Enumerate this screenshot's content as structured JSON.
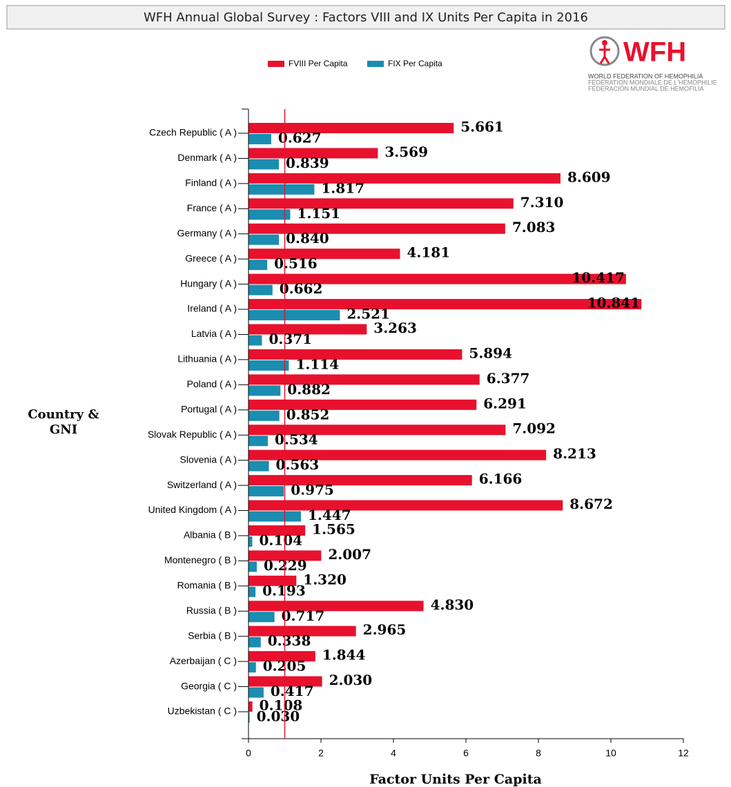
{
  "chart_data": {
    "type": "barh",
    "title": "WFH Annual Global Survey : Factors VIII and IX Units Per Capita in 2016",
    "logo": {
      "name": "WFH",
      "lines": [
        "WORLD FEDERATION OF HEMOPHILIA",
        "FÉDÉRATION MONDIALE DE L'HÉMOPHILIE",
        "FEDERACIÓN MUNDIAL DE HEMOFILIA"
      ]
    },
    "xlabel": "Factor Units Per Capita",
    "ylabel": [
      "Country &",
      "GNI"
    ],
    "categories": [
      "Czech Republic ( A )",
      "Denmark ( A )",
      "Finland ( A )",
      "France ( A )",
      "Germany ( A )",
      "Greece ( A )",
      "Hungary ( A )",
      "Ireland ( A )",
      "Latvia ( A )",
      "Lithuania ( A )",
      "Poland ( A )",
      "Portugal ( A )",
      "Slovak Republic ( A )",
      "Slovenia ( A )",
      "Switzerland ( A )",
      "United Kingdom ( A )",
      "Albania ( B )",
      "Montenegro ( B )",
      "Romania ( B )",
      "Russia ( B )",
      "Serbia ( B )",
      "Azerbaijan ( C )",
      "Georgia ( C )",
      "Uzbekistan ( C )"
    ],
    "series": [
      {
        "name": "FVIII Per Capita",
        "color": "#e8112d",
        "values": [
          5.661,
          3.569,
          8.609,
          7.31,
          7.083,
          4.181,
          10.417,
          10.841,
          3.263,
          5.894,
          6.377,
          6.291,
          7.092,
          8.213,
          6.166,
          8.672,
          1.565,
          2.007,
          1.32,
          4.83,
          2.965,
          1.844,
          2.03,
          0.108
        ],
        "value_labels": [
          "5.661",
          "3.569",
          "8.609",
          "7.310",
          "7.083",
          "4.181",
          "10.417",
          "10.841",
          "3.263",
          "5.894",
          "6.377",
          "6.291",
          "7.092",
          "8.213",
          "6.166",
          "8.672",
          "1.565",
          "2.007",
          "1.320",
          "4.830",
          "2.965",
          "1.844",
          "2.030",
          "0.108"
        ]
      },
      {
        "name": "FIX Per Capita",
        "color": "#1a8db0",
        "values": [
          0.627,
          0.839,
          1.817,
          1.151,
          0.84,
          0.516,
          0.662,
          2.521,
          0.371,
          1.114,
          0.882,
          0.852,
          0.534,
          0.563,
          0.975,
          1.447,
          0.104,
          0.229,
          0.193,
          0.717,
          0.338,
          0.205,
          0.417,
          0.03
        ],
        "value_labels": [
          "0.627",
          "0.839",
          "1.817",
          "1.151",
          "0.840",
          "0.516",
          "0.662",
          "2.521",
          "0.371",
          "1.114",
          "0.882",
          "0.852",
          "0.534",
          "0.563",
          "0.975",
          "1.447",
          "0.104",
          "0.229",
          "0.193",
          "0.717",
          "0.338",
          "0.205",
          "0.417",
          "0.030"
        ]
      }
    ],
    "xlim": [
      0,
      12
    ],
    "xticks": [
      0,
      2,
      4,
      6,
      8,
      10,
      12
    ],
    "reference_line": 1,
    "reference_color": "#e8112d",
    "legend": "top"
  }
}
